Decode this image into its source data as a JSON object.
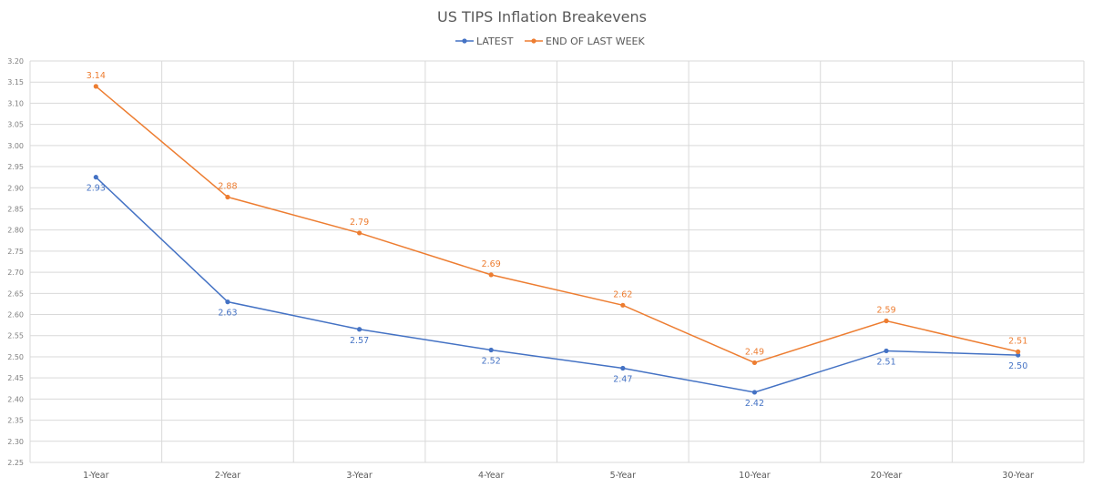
{
  "chart_data": {
    "type": "line",
    "title": "US TIPS Inflation Breakevens",
    "categories": [
      "1-Year",
      "2-Year",
      "3-Year",
      "4-Year",
      "5-Year",
      "10-Year",
      "20-Year",
      "30-Year"
    ],
    "series": [
      {
        "name": "LATEST",
        "color": "#4472c4",
        "values": [
          2.925,
          2.63,
          2.565,
          2.516,
          2.473,
          2.416,
          2.514,
          2.504
        ],
        "labels": [
          "2.93",
          "2.63",
          "2.57",
          "2.52",
          "2.47",
          "2.42",
          "2.51",
          "2.50"
        ],
        "label_position": "below"
      },
      {
        "name": "END OF LAST WEEK",
        "color": "#ed7d31",
        "values": [
          3.14,
          2.878,
          2.793,
          2.694,
          2.622,
          2.486,
          2.585,
          2.512
        ],
        "labels": [
          "3.14",
          "2.88",
          "2.79",
          "2.69",
          "2.62",
          "2.49",
          "2.59",
          "2.51"
        ],
        "label_position": "above"
      }
    ],
    "ylim": [
      2.25,
      3.2
    ],
    "yticks": [
      "2.25",
      "2.30",
      "2.35",
      "2.40",
      "2.45",
      "2.50",
      "2.55",
      "2.60",
      "2.65",
      "2.70",
      "2.75",
      "2.80",
      "2.85",
      "2.90",
      "2.95",
      "3.00",
      "3.05",
      "3.10",
      "3.15",
      "3.20"
    ],
    "grid": true,
    "legend": "top-center",
    "xlabel": "",
    "ylabel": ""
  }
}
